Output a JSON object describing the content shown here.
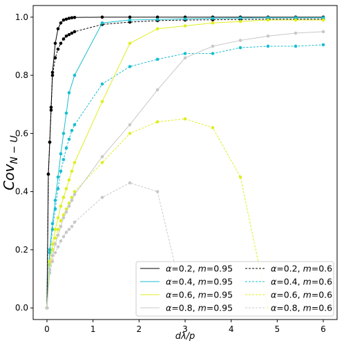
{
  "chart_data": {
    "type": "line",
    "xlabel": "dλ/p",
    "ylabel": "Cov",
    "ylabel_subscript": "N − U",
    "xlim": [
      -0.3,
      6.3
    ],
    "ylim": [
      -0.04,
      1.04
    ],
    "xticks": [
      "0",
      "1",
      "2",
      "3",
      "4",
      "5",
      "6"
    ],
    "yticks": [
      "0.0",
      "0.2",
      "0.4",
      "0.6",
      "0.8",
      "1.0"
    ],
    "grid": false,
    "legend_position": "lower-right",
    "series": [
      {
        "name": "α=0.2, m=0.95",
        "greek": "α",
        "rest": "=0.2, ",
        "m_label": "m",
        "m_value": "=0.95",
        "color": "#000000",
        "dash": "solid",
        "x": [
          0,
          0.03,
          0.06,
          0.09,
          0.12,
          0.18,
          0.24,
          0.3,
          0.36,
          0.42,
          0.48,
          0.54,
          0.6,
          1.2,
          1.8,
          2.4,
          3.0,
          3.6,
          4.2,
          4.8,
          5.4,
          6.0
        ],
        "y": [
          0,
          0.46,
          0.57,
          0.69,
          0.81,
          0.91,
          0.96,
          0.98,
          0.99,
          0.993,
          0.996,
          0.998,
          0.999,
          1.0,
          1.0,
          1.0,
          1.0,
          1.0,
          1.0,
          1.0,
          1.0,
          1.0
        ]
      },
      {
        "name": "α=0.2, m=0.6",
        "greek": "α",
        "rest": "=0.2, ",
        "m_label": "m",
        "m_value": "=0.6",
        "color": "#000000",
        "dash": "dashed",
        "x": [
          0,
          0.03,
          0.06,
          0.09,
          0.12,
          0.18,
          0.24,
          0.3,
          0.36,
          0.42,
          0.48,
          0.54,
          0.6,
          1.2,
          1.8,
          2.4,
          3.0,
          3.6,
          4.2,
          4.8,
          5.4,
          6.0
        ],
        "y": [
          0,
          0.46,
          0.57,
          0.68,
          0.8,
          0.86,
          0.89,
          0.91,
          0.925,
          0.935,
          0.94,
          0.945,
          0.95,
          0.975,
          0.983,
          0.988,
          0.99,
          0.991,
          0.992,
          0.993,
          0.993,
          0.993
        ]
      },
      {
        "name": "α=0.4, m=0.95",
        "greek": "α",
        "rest": "=0.4, ",
        "m_label": "m",
        "m_value": "=0.95",
        "color": "#17becf",
        "dash": "solid",
        "x": [
          0,
          0.06,
          0.12,
          0.18,
          0.24,
          0.3,
          0.36,
          0.42,
          0.48,
          0.6,
          1.2,
          1.8,
          2.4,
          3.0,
          3.6,
          4.2,
          4.8,
          5.4,
          6.0
        ],
        "y": [
          0,
          0.2,
          0.29,
          0.37,
          0.45,
          0.53,
          0.6,
          0.67,
          0.74,
          0.8,
          0.98,
          0.99,
          0.992,
          0.994,
          0.996,
          0.997,
          0.998,
          0.998,
          0.998
        ]
      },
      {
        "name": "α=0.4, m=0.6",
        "greek": "α",
        "rest": "=0.4, ",
        "m_label": "m",
        "m_value": "=0.6",
        "color": "#17becf",
        "dash": "dashed",
        "x": [
          0,
          0.06,
          0.12,
          0.18,
          0.24,
          0.3,
          0.36,
          0.42,
          0.48,
          0.54,
          0.6,
          1.2,
          1.8,
          2.4,
          3.0,
          3.6,
          4.2,
          4.8,
          5.4,
          6.0
        ],
        "y": [
          0,
          0.19,
          0.27,
          0.34,
          0.41,
          0.47,
          0.51,
          0.55,
          0.58,
          0.61,
          0.63,
          0.77,
          0.83,
          0.855,
          0.875,
          0.875,
          0.895,
          0.9,
          0.9,
          0.905
        ]
      },
      {
        "name": "α=0.6, m=0.95",
        "greek": "α",
        "rest": "=0.6, ",
        "m_label": "m",
        "m_value": "=0.95",
        "color": "#dfee1e",
        "dash": "solid",
        "x": [
          0,
          0.06,
          0.12,
          0.18,
          0.24,
          0.3,
          0.36,
          0.42,
          0.48,
          0.54,
          0.6,
          1.2,
          1.8,
          2.4,
          3.0,
          3.6,
          4.2,
          4.8,
          5.4,
          6.0
        ],
        "y": [
          0,
          0.16,
          0.22,
          0.27,
          0.31,
          0.35,
          0.38,
          0.41,
          0.44,
          0.47,
          0.5,
          0.71,
          0.91,
          0.96,
          0.97,
          0.98,
          0.985,
          0.99,
          0.99,
          0.99
        ]
      },
      {
        "name": "α=0.6, m=0.6",
        "greek": "α",
        "rest": "=0.6, ",
        "m_label": "m",
        "m_value": "=0.6",
        "color": "#dfee1e",
        "dash": "dashed",
        "x": [
          0,
          0.06,
          0.12,
          0.18,
          0.24,
          0.3,
          0.36,
          0.42,
          0.48,
          0.54,
          0.6,
          1.2,
          1.8,
          2.4,
          3.0,
          3.6,
          4.2,
          4.8
        ],
        "y": [
          0,
          0.15,
          0.2,
          0.24,
          0.27,
          0.3,
          0.32,
          0.34,
          0.36,
          0.38,
          0.4,
          0.5,
          0.6,
          0.64,
          0.65,
          0.62,
          0.45,
          0.0
        ]
      },
      {
        "name": "α=0.8, m=0.95",
        "greek": "α",
        "rest": "=0.8, ",
        "m_label": "m",
        "m_value": "=0.95",
        "color": "#c8c8c8",
        "dash": "solid",
        "x": [
          0,
          0.06,
          0.12,
          0.18,
          0.24,
          0.3,
          0.36,
          0.42,
          0.48,
          0.54,
          0.6,
          1.2,
          1.8,
          2.4,
          3.0,
          3.6,
          4.2,
          4.8,
          5.4,
          6.0
        ],
        "y": [
          0,
          0.13,
          0.18,
          0.22,
          0.25,
          0.28,
          0.31,
          0.33,
          0.35,
          0.37,
          0.39,
          0.52,
          0.63,
          0.75,
          0.86,
          0.9,
          0.92,
          0.935,
          0.945,
          0.95
        ]
      },
      {
        "name": "α=0.8, m=0.6",
        "greek": "α",
        "rest": "=0.8, ",
        "m_label": "m",
        "m_value": "=0.6",
        "color": "#c8c8c8",
        "dash": "dashed",
        "x": [
          0,
          0.06,
          0.12,
          0.18,
          0.24,
          0.3,
          0.36,
          0.42,
          0.48,
          0.54,
          0.6,
          1.2,
          1.8,
          2.4,
          3.0
        ],
        "y": [
          0,
          0.12,
          0.16,
          0.19,
          0.21,
          0.23,
          0.245,
          0.26,
          0.27,
          0.28,
          0.295,
          0.38,
          0.43,
          0.4,
          0.0
        ]
      }
    ]
  }
}
